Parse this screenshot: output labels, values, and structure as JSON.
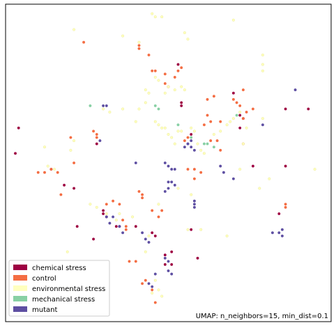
{
  "chart_data": {
    "type": "scatter",
    "title": "",
    "xlabel": "",
    "ylabel": "",
    "xlim": [
      0,
      100
    ],
    "ylim": [
      0,
      100
    ],
    "grid": false,
    "legend": {
      "position": "lower-left",
      "entries": [
        "chemical stress",
        "control",
        "environmental stress",
        "mechanical stress",
        "mutant"
      ]
    },
    "annotation": "UMAP: n_neighbors=15, min_dist=0.1",
    "series": [
      {
        "name": "chemical stress",
        "color": "#9e0142",
        "points": [
          [
            3,
            53
          ],
          [
            4,
            61
          ],
          [
            14,
            48
          ],
          [
            18,
            43
          ],
          [
            21,
            42
          ],
          [
            22,
            30
          ],
          [
            27,
            26
          ],
          [
            28,
            56
          ],
          [
            30,
            35
          ],
          [
            30,
            34
          ],
          [
            31,
            33
          ],
          [
            34,
            30
          ],
          [
            35,
            30
          ],
          [
            40,
            30
          ],
          [
            45,
            28
          ],
          [
            46,
            27
          ],
          [
            49,
            18
          ],
          [
            51,
            18
          ],
          [
            51,
            22
          ],
          [
            49,
            21
          ],
          [
            53,
            81
          ],
          [
            54,
            69
          ],
          [
            54,
            68
          ],
          [
            57,
            59
          ],
          [
            57,
            29
          ],
          [
            59,
            20
          ],
          [
            70,
            72
          ],
          [
            72,
            65
          ],
          [
            72,
            61
          ],
          [
            73,
            64
          ],
          [
            76,
            49
          ],
          [
            86,
            49
          ],
          [
            86,
            67
          ],
          [
            93,
            67
          ],
          [
            84,
            34
          ]
        ]
      },
      {
        "name": "control",
        "color": "#f46d43",
        "points": [
          [
            24,
            88
          ],
          [
            27,
            60
          ],
          [
            28,
            59
          ],
          [
            28,
            58
          ],
          [
            31,
            37
          ],
          [
            33,
            38
          ],
          [
            35,
            37
          ],
          [
            36,
            32
          ],
          [
            37,
            29
          ],
          [
            37,
            30
          ],
          [
            38,
            19
          ],
          [
            40,
            19
          ],
          [
            42,
            12
          ],
          [
            43,
            13
          ],
          [
            45,
            10
          ],
          [
            46,
            6
          ],
          [
            41,
            87
          ],
          [
            41,
            86
          ],
          [
            44,
            84
          ],
          [
            45,
            79
          ],
          [
            46,
            79
          ],
          [
            52,
            77
          ],
          [
            49,
            78
          ],
          [
            49,
            75
          ],
          [
            50,
            74
          ],
          [
            55,
            57
          ],
          [
            56,
            58
          ],
          [
            58,
            48
          ],
          [
            60,
            47
          ],
          [
            58,
            45
          ],
          [
            61,
            62
          ],
          [
            62,
            65
          ],
          [
            63,
            63
          ],
          [
            66,
            63
          ],
          [
            70,
            70
          ],
          [
            71,
            69
          ],
          [
            72,
            68
          ],
          [
            73,
            64
          ],
          [
            73,
            73
          ],
          [
            74,
            66
          ],
          [
            76,
            67
          ],
          [
            63,
            57
          ],
          [
            66,
            54
          ],
          [
            10,
            47
          ],
          [
            12,
            47
          ],
          [
            14,
            48
          ],
          [
            16,
            47
          ],
          [
            56,
            48
          ],
          [
            17,
            40
          ],
          [
            20,
            58
          ],
          [
            21,
            50
          ],
          [
            41,
            41
          ],
          [
            42,
            40
          ],
          [
            42,
            39
          ],
          [
            45,
            35
          ],
          [
            47,
            33
          ],
          [
            48,
            35
          ],
          [
            62,
            70
          ],
          [
            64,
            71
          ],
          [
            65,
            57
          ],
          [
            73,
            56
          ],
          [
            53,
            79
          ],
          [
            54,
            80
          ],
          [
            86,
            37
          ],
          [
            86,
            36
          ]
        ]
      },
      {
        "name": "environmental stress",
        "color": "#ffffbf",
        "points": [
          [
            45,
            97
          ],
          [
            46,
            96
          ],
          [
            48,
            96
          ],
          [
            70,
            95
          ],
          [
            21,
            92
          ],
          [
            36,
            90
          ],
          [
            41,
            88
          ],
          [
            55,
            91
          ],
          [
            56,
            89
          ],
          [
            79,
            84
          ],
          [
            79,
            81
          ],
          [
            79,
            79
          ],
          [
            46,
            77
          ],
          [
            47,
            76
          ],
          [
            43,
            73
          ],
          [
            44,
            72
          ],
          [
            50,
            74
          ],
          [
            52,
            73
          ],
          [
            36,
            67
          ],
          [
            41,
            67
          ],
          [
            43,
            69
          ],
          [
            49,
            72
          ],
          [
            54,
            74
          ],
          [
            55,
            73
          ],
          [
            30,
            67
          ],
          [
            32,
            66
          ],
          [
            40,
            63
          ],
          [
            46,
            63
          ],
          [
            47,
            62
          ],
          [
            48,
            61
          ],
          [
            49,
            61
          ],
          [
            50,
            59
          ],
          [
            51,
            58
          ],
          [
            52,
            56
          ],
          [
            53,
            60
          ],
          [
            54,
            60
          ],
          [
            57,
            61
          ],
          [
            58,
            60
          ],
          [
            59,
            56
          ],
          [
            60,
            54
          ],
          [
            61,
            53
          ],
          [
            64,
            59
          ],
          [
            66,
            60
          ],
          [
            68,
            62
          ],
          [
            69,
            63
          ],
          [
            70,
            64
          ],
          [
            72,
            66
          ],
          [
            73,
            56
          ],
          [
            74,
            61
          ],
          [
            79,
            64
          ],
          [
            12,
            55
          ],
          [
            20,
            54
          ],
          [
            21,
            57
          ],
          [
            95,
            48
          ],
          [
            81,
            45
          ],
          [
            53,
            42
          ],
          [
            57,
            40
          ],
          [
            26,
            37
          ],
          [
            28,
            36
          ],
          [
            31,
            34
          ],
          [
            34,
            32
          ],
          [
            39,
            33
          ],
          [
            44,
            27
          ],
          [
            43,
            22
          ],
          [
            56,
            29
          ],
          [
            60,
            29
          ],
          [
            68,
            27
          ],
          [
            19,
            22
          ],
          [
            20,
            10
          ],
          [
            46,
            13
          ],
          [
            47,
            10
          ],
          [
            48,
            8
          ],
          [
            45,
            9
          ],
          [
            13,
            49
          ],
          [
            15,
            48
          ],
          [
            35,
            34
          ],
          [
            72,
            48
          ],
          [
            78,
            42
          ],
          [
            47,
            37
          ]
        ]
      },
      {
        "name": "mechanical stress",
        "color": "#88d0a4",
        "points": [
          [
            26,
            68
          ],
          [
            46,
            68
          ],
          [
            47,
            67
          ],
          [
            53,
            62
          ],
          [
            61,
            56
          ],
          [
            62,
            56
          ],
          [
            64,
            55
          ],
          [
            57,
            58
          ],
          [
            71,
            65
          ]
        ]
      },
      {
        "name": "mutant",
        "color": "#5e4fa2",
        "points": [
          [
            30,
            68
          ],
          [
            31,
            68
          ],
          [
            29,
            57
          ],
          [
            40,
            50
          ],
          [
            49,
            50
          ],
          [
            50,
            49
          ],
          [
            51,
            48
          ],
          [
            52,
            48
          ],
          [
            50,
            44
          ],
          [
            51,
            44
          ],
          [
            52,
            43
          ],
          [
            56,
            56
          ],
          [
            57,
            55
          ],
          [
            58,
            54
          ],
          [
            55,
            55
          ],
          [
            66,
            49
          ],
          [
            67,
            47
          ],
          [
            70,
            45
          ],
          [
            58,
            38
          ],
          [
            58,
            36
          ],
          [
            58,
            37
          ],
          [
            31,
            33
          ],
          [
            32,
            31
          ],
          [
            33,
            33
          ],
          [
            35,
            30
          ],
          [
            36,
            28
          ],
          [
            42,
            28
          ],
          [
            43,
            26
          ],
          [
            44,
            25
          ],
          [
            49,
            20
          ],
          [
            50,
            19
          ],
          [
            46,
            15
          ],
          [
            50,
            16
          ],
          [
            51,
            15
          ],
          [
            84,
            28
          ],
          [
            85,
            29
          ],
          [
            85,
            27
          ],
          [
            82,
            28
          ],
          [
            79,
            62
          ],
          [
            89,
            73
          ],
          [
            56,
            56
          ],
          [
            57,
            57
          ],
          [
            49,
            41
          ],
          [
            50,
            42
          ],
          [
            44,
            12
          ],
          [
            45,
            11
          ]
        ]
      }
    ]
  }
}
